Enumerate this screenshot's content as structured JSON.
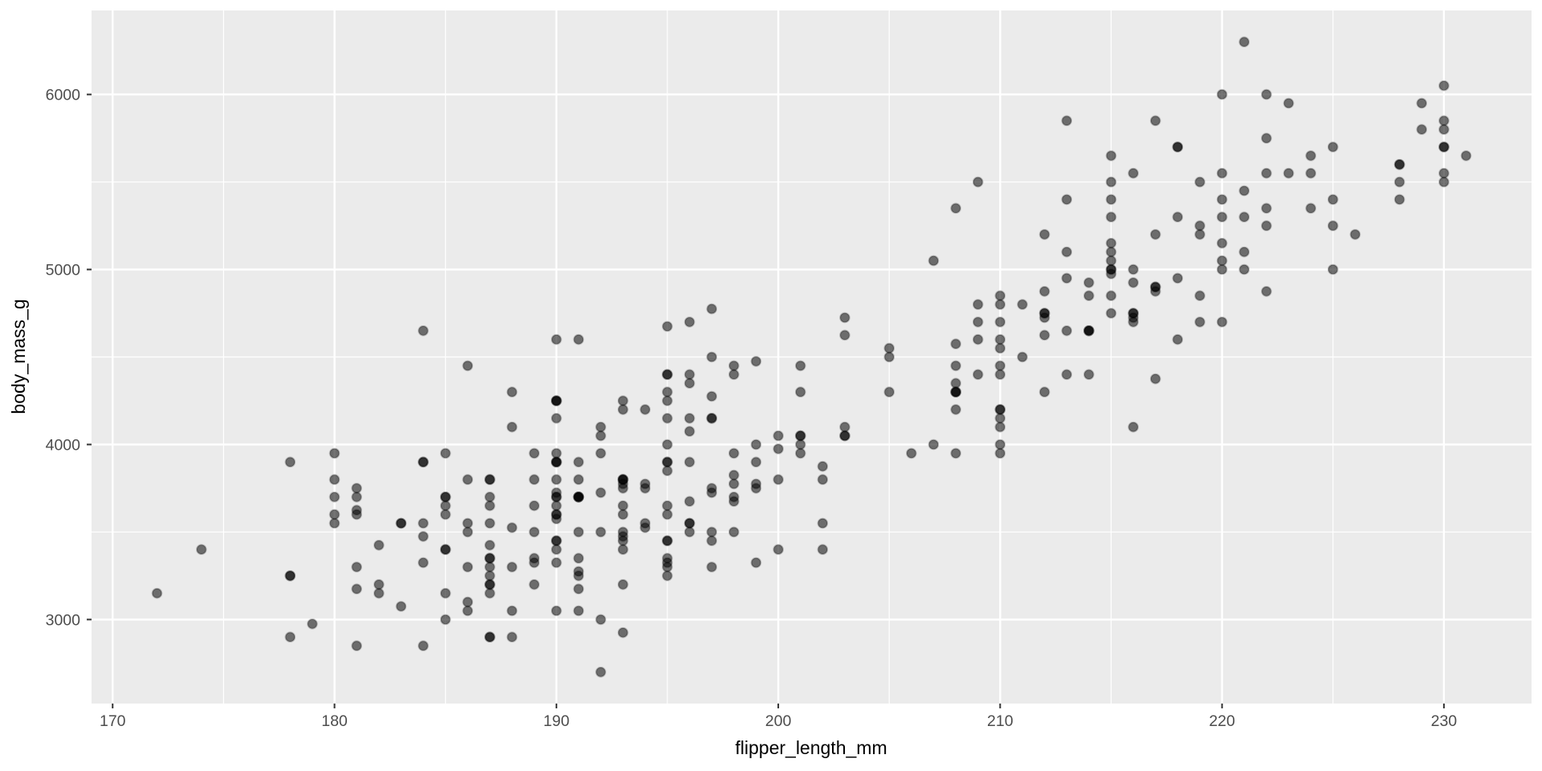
{
  "chart_data": {
    "type": "scatter",
    "title": "",
    "xlabel": "flipper_length_mm",
    "ylabel": "body_mass_g",
    "x_ticks": [
      170,
      180,
      190,
      200,
      210,
      220,
      230
    ],
    "x_minor_ticks": [
      175,
      185,
      195,
      205,
      215,
      225
    ],
    "y_ticks": [
      3000,
      4000,
      5000,
      6000
    ],
    "y_minor_ticks": [
      3500,
      4500,
      5500
    ],
    "xlim": [
      169.05,
      233.95
    ],
    "ylim": [
      2520,
      6480
    ],
    "grid": "major-and-minor",
    "legend": "none",
    "theme": {
      "panel_background": "#EBEBEB",
      "grid_color": "#FFFFFF",
      "tick_color": "#333333",
      "tick_label_color": "#4D4D4D",
      "axis_title_color": "#000000",
      "point_color": "#000000",
      "point_opacity": 0.54,
      "point_radius": 5.8
    },
    "points": [
      [
        181,
        3750
      ],
      [
        186,
        3800
      ],
      [
        195,
        3250
      ],
      [
        193,
        3450
      ],
      [
        190,
        3650
      ],
      [
        181,
        3625
      ],
      [
        195,
        4675
      ],
      [
        193,
        3475
      ],
      [
        190,
        4250
      ],
      [
        186,
        3300
      ],
      [
        180,
        3700
      ],
      [
        182,
        3200
      ],
      [
        191,
        3800
      ],
      [
        198,
        4400
      ],
      [
        185,
        3700
      ],
      [
        195,
        3450
      ],
      [
        197,
        4500
      ],
      [
        184,
        3325
      ],
      [
        194,
        4200
      ],
      [
        174,
        3400
      ],
      [
        180,
        3600
      ],
      [
        189,
        3800
      ],
      [
        185,
        3950
      ],
      [
        180,
        3800
      ],
      [
        187,
        3800
      ],
      [
        183,
        3550
      ],
      [
        187,
        3200
      ],
      [
        172,
        3150
      ],
      [
        180,
        3950
      ],
      [
        178,
        3250
      ],
      [
        178,
        3900
      ],
      [
        188,
        3300
      ],
      [
        184,
        3900
      ],
      [
        195,
        3325
      ],
      [
        196,
        4150
      ],
      [
        190,
        3950
      ],
      [
        180,
        3550
      ],
      [
        181,
        3300
      ],
      [
        184,
        4650
      ],
      [
        182,
        3150
      ],
      [
        195,
        3900
      ],
      [
        186,
        3100
      ],
      [
        196,
        4400
      ],
      [
        185,
        3000
      ],
      [
        190,
        4600
      ],
      [
        182,
        3425
      ],
      [
        179,
        2975
      ],
      [
        190,
        4150
      ],
      [
        191,
        3500
      ],
      [
        186,
        3500
      ],
      [
        188,
        4300
      ],
      [
        190,
        3450
      ],
      [
        200,
        4050
      ],
      [
        187,
        2900
      ],
      [
        191,
        3700
      ],
      [
        186,
        3550
      ],
      [
        193,
        3800
      ],
      [
        181,
        2850
      ],
      [
        194,
        3750
      ],
      [
        185,
        3150
      ],
      [
        195,
        4400
      ],
      [
        185,
        3600
      ],
      [
        192,
        4050
      ],
      [
        184,
        2850
      ],
      [
        192,
        3950
      ],
      [
        195,
        3350
      ],
      [
        188,
        4100
      ],
      [
        190,
        3050
      ],
      [
        198,
        4450
      ],
      [
        190,
        3600
      ],
      [
        190,
        3900
      ],
      [
        196,
        3550
      ],
      [
        197,
        4150
      ],
      [
        190,
        3700
      ],
      [
        195,
        4250
      ],
      [
        191,
        3700
      ],
      [
        184,
        3900
      ],
      [
        187,
        3550
      ],
      [
        195,
        4000
      ],
      [
        189,
        3200
      ],
      [
        196,
        4700
      ],
      [
        187,
        3800
      ],
      [
        193,
        4200
      ],
      [
        191,
        3350
      ],
      [
        194,
        3550
      ],
      [
        190,
        3800
      ],
      [
        189,
        3500
      ],
      [
        189,
        3950
      ],
      [
        190,
        3600
      ],
      [
        202,
        3550
      ],
      [
        205,
        4300
      ],
      [
        185,
        3400
      ],
      [
        186,
        4450
      ],
      [
        187,
        3300
      ],
      [
        208,
        4300
      ],
      [
        190,
        3700
      ],
      [
        196,
        4350
      ],
      [
        178,
        2900
      ],
      [
        192,
        4100
      ],
      [
        192,
        3725
      ],
      [
        203,
        4725
      ],
      [
        183,
        3075
      ],
      [
        190,
        4250
      ],
      [
        193,
        2925
      ],
      [
        184,
        3550
      ],
      [
        199,
        3750
      ],
      [
        190,
        3900
      ],
      [
        181,
        3175
      ],
      [
        197,
        4775
      ],
      [
        198,
        3825
      ],
      [
        191,
        4600
      ],
      [
        193,
        3200
      ],
      [
        197,
        4275
      ],
      [
        191,
        3900
      ],
      [
        196,
        4075
      ],
      [
        188,
        2900
      ],
      [
        199,
        3775
      ],
      [
        189,
        3350
      ],
      [
        189,
        3325
      ],
      [
        187,
        3150
      ],
      [
        198,
        3500
      ],
      [
        193,
        3400
      ],
      [
        202,
        3875
      ],
      [
        186,
        3050
      ],
      [
        199,
        4000
      ],
      [
        191,
        3275
      ],
      [
        195,
        4300
      ],
      [
        191,
        3050
      ],
      [
        210,
        4000
      ],
      [
        190,
        3325
      ],
      [
        197,
        3500
      ],
      [
        193,
        3500
      ],
      [
        199,
        4475
      ],
      [
        187,
        3425
      ],
      [
        190,
        3900
      ],
      [
        191,
        3175
      ],
      [
        200,
        3975
      ],
      [
        185,
        3400
      ],
      [
        193,
        4250
      ],
      [
        195,
        3900
      ],
      [
        183,
        3550
      ],
      [
        188,
        3050
      ],
      [
        190,
        3725
      ],
      [
        192,
        3000
      ],
      [
        185,
        3650
      ],
      [
        190,
        4250
      ],
      [
        184,
        3475
      ],
      [
        195,
        3450
      ],
      [
        193,
        3750
      ],
      [
        187,
        3700
      ],
      [
        201,
        4000
      ],
      [
        192,
        3500
      ],
      [
        196,
        3900
      ],
      [
        193,
        3650
      ],
      [
        188,
        3525
      ],
      [
        197,
        3725
      ],
      [
        198,
        3950
      ],
      [
        178,
        3250
      ],
      [
        197,
        3750
      ],
      [
        195,
        4150
      ],
      [
        198,
        3700
      ],
      [
        193,
        3800
      ],
      [
        194,
        3775
      ],
      [
        185,
        3700
      ],
      [
        201,
        4050
      ],
      [
        190,
        3575
      ],
      [
        201,
        4050
      ],
      [
        197,
        3300
      ],
      [
        181,
        3700
      ],
      [
        190,
        3450
      ],
      [
        195,
        4400
      ],
      [
        181,
        3600
      ],
      [
        191,
        3700
      ],
      [
        187,
        2900
      ],
      [
        193,
        3800
      ],
      [
        195,
        3300
      ],
      [
        197,
        4150
      ],
      [
        200,
        3400
      ],
      [
        200,
        3800
      ],
      [
        191,
        3700
      ],
      [
        205,
        4550
      ],
      [
        187,
        3200
      ],
      [
        201,
        4300
      ],
      [
        187,
        3350
      ],
      [
        203,
        4100
      ],
      [
        195,
        3600
      ],
      [
        199,
        3900
      ],
      [
        195,
        3850
      ],
      [
        210,
        4800
      ],
      [
        192,
        2700
      ],
      [
        205,
        4500
      ],
      [
        210,
        3950
      ],
      [
        187,
        3650
      ],
      [
        196,
        3550
      ],
      [
        196,
        3500
      ],
      [
        196,
        3675
      ],
      [
        201,
        4450
      ],
      [
        190,
        3400
      ],
      [
        212,
        4300
      ],
      [
        187,
        3250
      ],
      [
        198,
        3675
      ],
      [
        199,
        3325
      ],
      [
        201,
        3950
      ],
      [
        193,
        3600
      ],
      [
        203,
        4050
      ],
      [
        187,
        3350
      ],
      [
        197,
        3450
      ],
      [
        191,
        3250
      ],
      [
        203,
        4050
      ],
      [
        202,
        3800
      ],
      [
        194,
        3525
      ],
      [
        206,
        3950
      ],
      [
        189,
        3650
      ],
      [
        195,
        3650
      ],
      [
        207,
        4000
      ],
      [
        202,
        3400
      ],
      [
        193,
        3775
      ],
      [
        210,
        4100
      ],
      [
        198,
        3775
      ],
      [
        211,
        4500
      ],
      [
        230,
        5700
      ],
      [
        210,
        4450
      ],
      [
        218,
        5700
      ],
      [
        215,
        5400
      ],
      [
        210,
        4550
      ],
      [
        211,
        4800
      ],
      [
        219,
        5200
      ],
      [
        209,
        4400
      ],
      [
        215,
        5150
      ],
      [
        214,
        4650
      ],
      [
        216,
        5550
      ],
      [
        214,
        4650
      ],
      [
        213,
        5850
      ],
      [
        210,
        4200
      ],
      [
        217,
        5850
      ],
      [
        210,
        4150
      ],
      [
        221,
        6300
      ],
      [
        209,
        4800
      ],
      [
        222,
        5350
      ],
      [
        218,
        5700
      ],
      [
        215,
        5000
      ],
      [
        213,
        4400
      ],
      [
        215,
        5050
      ],
      [
        215,
        5000
      ],
      [
        215,
        5100
      ],
      [
        216,
        4100
      ],
      [
        215,
        5650
      ],
      [
        210,
        4600
      ],
      [
        220,
        5550
      ],
      [
        222,
        5250
      ],
      [
        209,
        4700
      ],
      [
        207,
        5050
      ],
      [
        230,
        6050
      ],
      [
        220,
        5150
      ],
      [
        220,
        5400
      ],
      [
        213,
        4950
      ],
      [
        219,
        5250
      ],
      [
        208,
        4350
      ],
      [
        208,
        5350
      ],
      [
        208,
        3950
      ],
      [
        225,
        5700
      ],
      [
        208,
        4300
      ],
      [
        216,
        4750
      ],
      [
        222,
        5550
      ],
      [
        217,
        4900
      ],
      [
        210,
        4200
      ],
      [
        225,
        5400
      ],
      [
        213,
        5100
      ],
      [
        215,
        5300
      ],
      [
        210,
        4850
      ],
      [
        220,
        5300
      ],
      [
        210,
        4400
      ],
      [
        225,
        5000
      ],
      [
        217,
        4900
      ],
      [
        220,
        5050
      ],
      [
        208,
        4300
      ],
      [
        220,
        5000
      ],
      [
        208,
        4450
      ],
      [
        224,
        5550
      ],
      [
        208,
        4200
      ],
      [
        221,
        5300
      ],
      [
        214,
        4400
      ],
      [
        231,
        5650
      ],
      [
        219,
        4700
      ],
      [
        230,
        5700
      ],
      [
        214,
        4650
      ],
      [
        229,
        5800
      ],
      [
        220,
        4700
      ],
      [
        223,
        5550
      ],
      [
        216,
        4750
      ],
      [
        221,
        5000
      ],
      [
        221,
        5100
      ],
      [
        217,
        5200
      ],
      [
        216,
        4700
      ],
      [
        230,
        5800
      ],
      [
        209,
        4600
      ],
      [
        220,
        6000
      ],
      [
        215,
        4750
      ],
      [
        223,
        5950
      ],
      [
        212,
        4625
      ],
      [
        221,
        5450
      ],
      [
        212,
        4725
      ],
      [
        224,
        5350
      ],
      [
        212,
        4750
      ],
      [
        228,
        5600
      ],
      [
        218,
        4600
      ],
      [
        218,
        5300
      ],
      [
        212,
        4875
      ],
      [
        230,
        5550
      ],
      [
        218,
        4950
      ],
      [
        228,
        5400
      ],
      [
        212,
        4750
      ],
      [
        224,
        5650
      ],
      [
        214,
        4850
      ],
      [
        226,
        5200
      ],
      [
        216,
        4925
      ],
      [
        222,
        4875
      ],
      [
        203,
        4625
      ],
      [
        225,
        5250
      ],
      [
        219,
        4850
      ],
      [
        228,
        5600
      ],
      [
        215,
        4975
      ],
      [
        228,
        5500
      ],
      [
        216,
        4725
      ],
      [
        215,
        5500
      ],
      [
        210,
        4700
      ],
      [
        219,
        5500
      ],
      [
        208,
        4575
      ],
      [
        209,
        5500
      ],
      [
        216,
        5000
      ],
      [
        229,
        5950
      ],
      [
        213,
        4650
      ],
      [
        230,
        5500
      ],
      [
        217,
        4375
      ],
      [
        230,
        5850
      ],
      [
        217,
        4875
      ],
      [
        222,
        6000
      ],
      [
        214,
        4925
      ],
      [
        215,
        4850
      ],
      [
        222,
        5750
      ],
      [
        212,
        5200
      ],
      [
        213,
        5400
      ]
    ]
  }
}
